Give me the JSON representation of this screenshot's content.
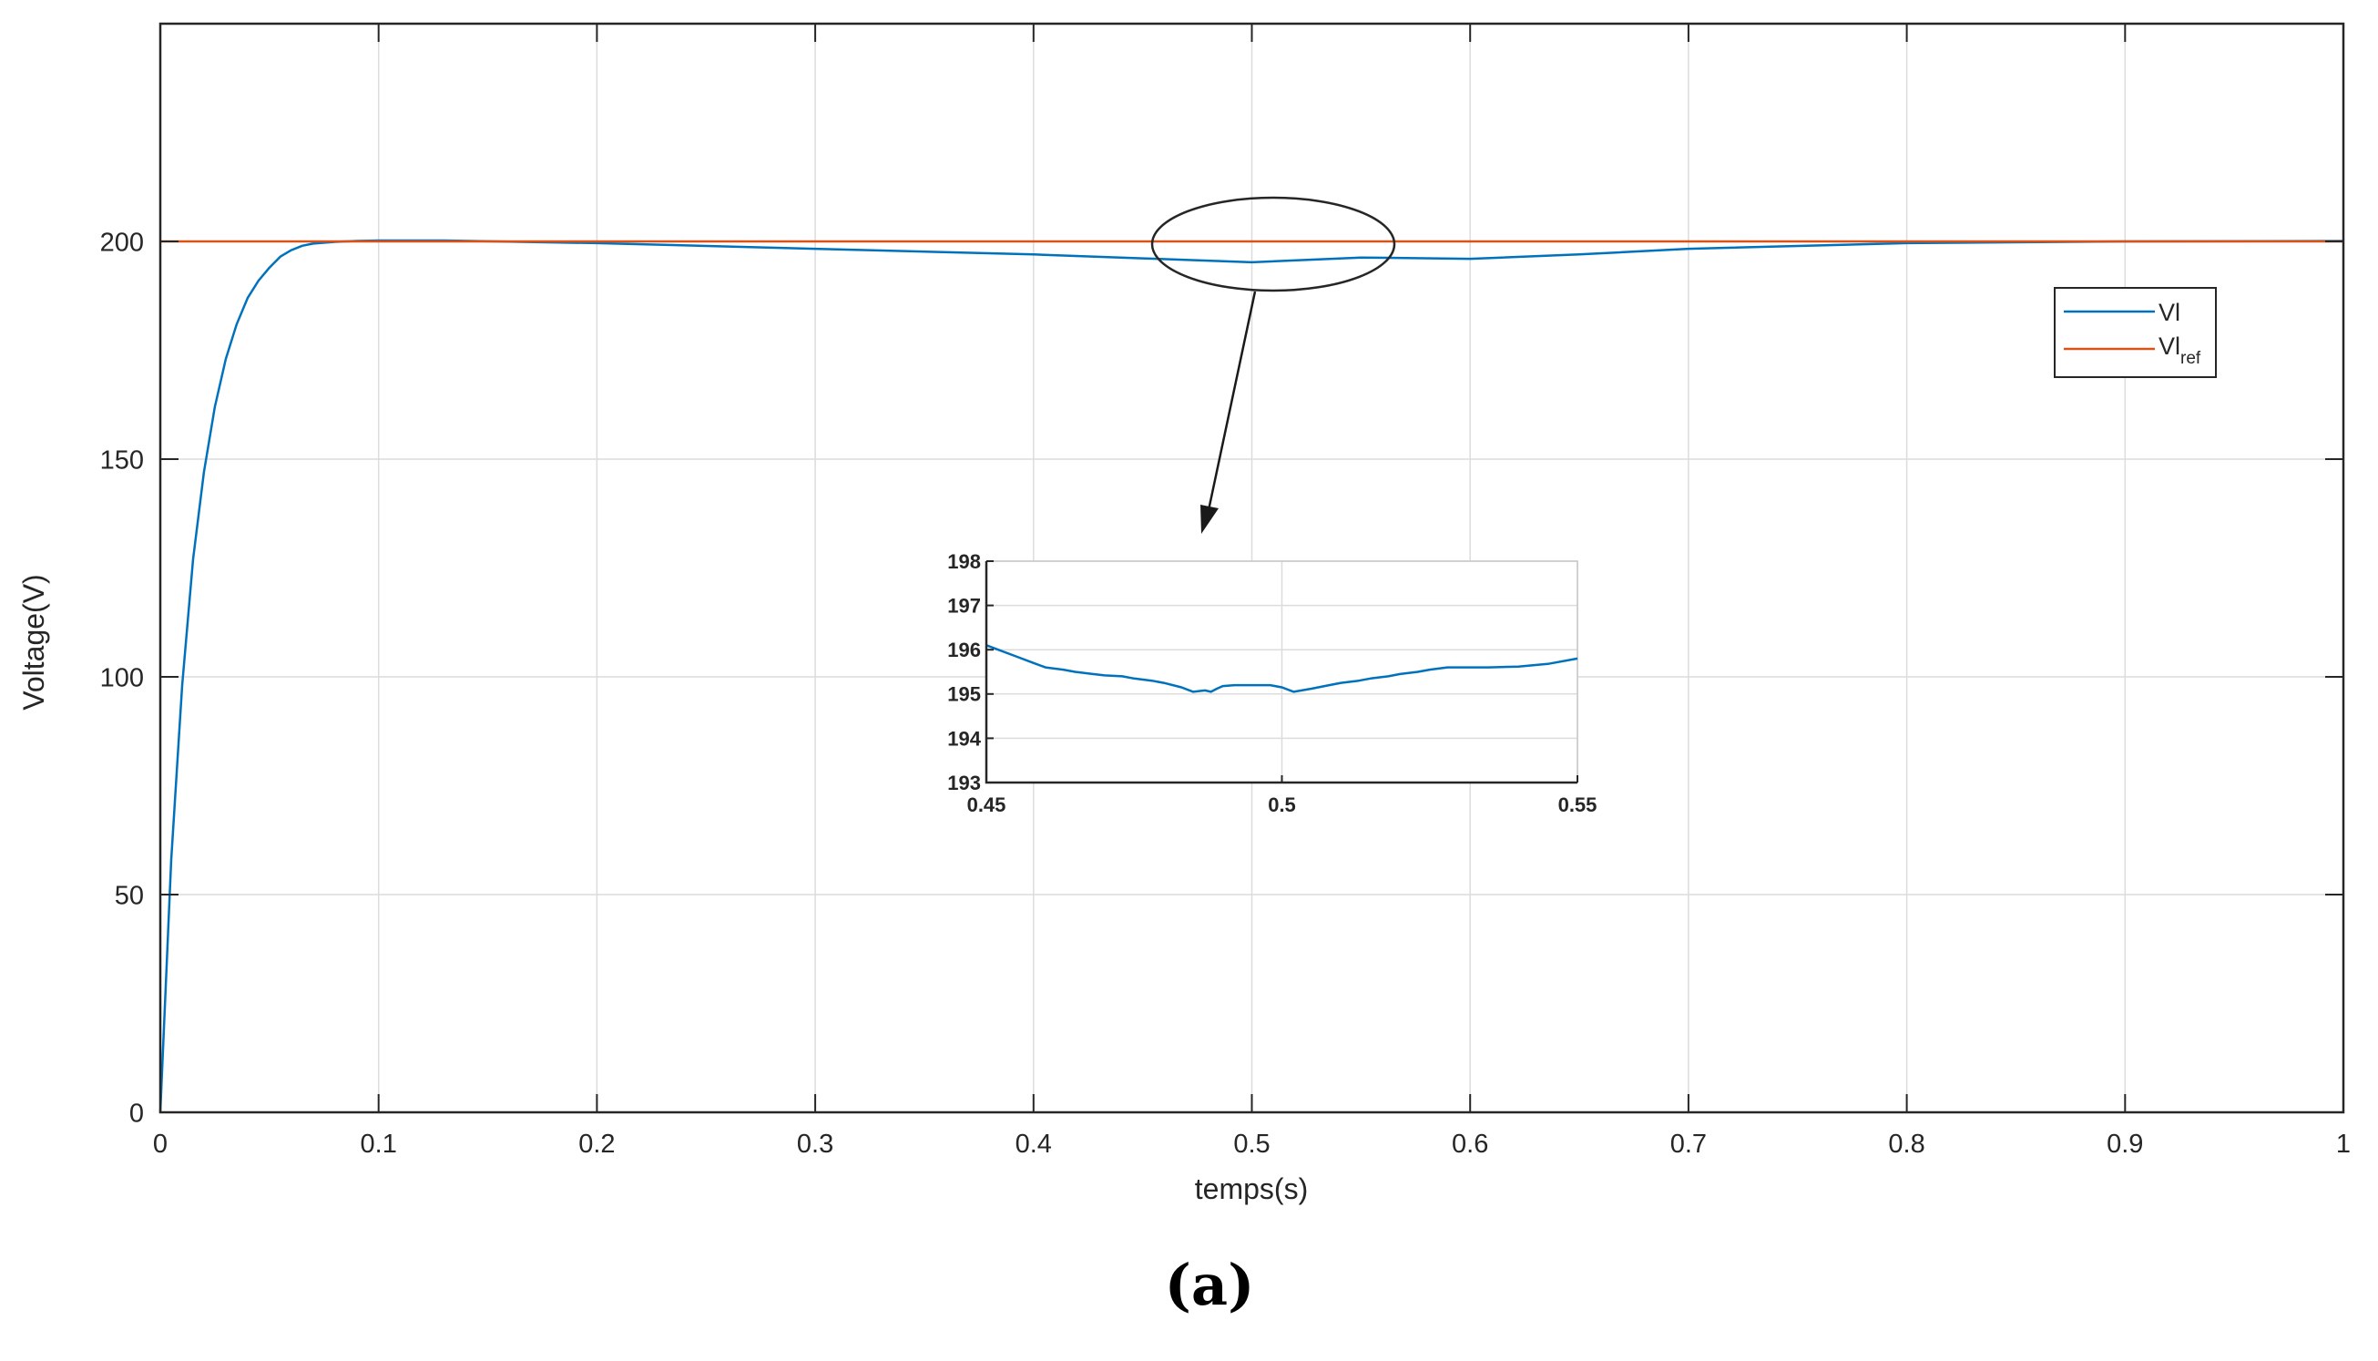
{
  "caption": "(a)",
  "chart_data": [
    {
      "type": "line",
      "xlabel": "temps(s)",
      "ylabel": "Voltage(V)",
      "xlim": [
        0,
        1
      ],
      "ylim": [
        0,
        250
      ],
      "x_ticks": [
        0,
        0.1,
        0.2,
        0.3,
        0.4,
        0.5,
        0.6,
        0.7,
        0.8,
        0.9,
        1
      ],
      "x_tick_labels": [
        "0",
        "0.1",
        "0.2",
        "0.3",
        "0.4",
        "0.5",
        "0.6",
        "0.7",
        "0.8",
        "0.9",
        "1"
      ],
      "y_ticks": [
        0,
        50,
        100,
        150,
        200
      ],
      "y_tick_labels": [
        "0",
        "50",
        "100",
        "150",
        "200"
      ],
      "grid": true,
      "legend_position": "right",
      "series": [
        {
          "name": "Vl",
          "color": "#0072bd",
          "x": [
            0,
            0.005,
            0.01,
            0.015,
            0.02,
            0.025,
            0.03,
            0.035,
            0.04,
            0.045,
            0.05,
            0.055,
            0.06,
            0.065,
            0.07,
            0.08,
            0.09,
            0.1,
            0.13,
            0.2,
            0.3,
            0.4,
            0.45,
            0.5,
            0.55,
            0.6,
            0.65,
            0.7,
            0.8,
            0.9,
            1.0
          ],
          "y": [
            0,
            58,
            98,
            127,
            147,
            162,
            173,
            181,
            187,
            191,
            194,
            196.5,
            198,
            199,
            199.5,
            199.9,
            200.1,
            200.2,
            200.2,
            199.6,
            198.3,
            197,
            196.1,
            195.2,
            196.3,
            196,
            197,
            198.3,
            199.6,
            200,
            200.1
          ]
        },
        {
          "name_main": "Vl",
          "name_sub": "ref",
          "color": "#d95319",
          "x": [
            0,
            1
          ],
          "y": [
            200,
            200
          ]
        }
      ],
      "annotation": {
        "type": "ellipse-callout",
        "center_x": 0.5,
        "center_y": 198,
        "target": "inset"
      }
    },
    {
      "type": "line",
      "role": "inset",
      "xlim": [
        0.45,
        0.55
      ],
      "ylim": [
        193,
        198
      ],
      "x_ticks": [
        0.45,
        0.5,
        0.55
      ],
      "x_tick_labels": [
        "0.45",
        "0.5",
        "0.55"
      ],
      "y_ticks": [
        193,
        194,
        195,
        196,
        197,
        198
      ],
      "y_tick_labels": [
        "193",
        "194",
        "195",
        "196",
        "197",
        "198"
      ],
      "grid": true,
      "series": [
        {
          "name": "",
          "color": "#0072bd",
          "x": [
            0.45,
            0.452,
            0.455,
            0.458,
            0.46,
            0.463,
            0.465,
            0.468,
            0.47,
            0.473,
            0.475,
            0.478,
            0.48,
            0.483,
            0.485,
            0.487,
            0.488,
            0.489,
            0.49,
            0.492,
            0.495,
            0.498,
            0.5,
            0.502,
            0.505,
            0.508,
            0.51,
            0.513,
            0.515,
            0.518,
            0.52,
            0.523,
            0.525,
            0.528,
            0.53,
            0.535,
            0.54,
            0.545,
            0.55
          ],
          "y": [
            196.1,
            196.0,
            195.85,
            195.7,
            195.6,
            195.55,
            195.5,
            195.45,
            195.42,
            195.4,
            195.35,
            195.3,
            195.25,
            195.15,
            195.05,
            195.08,
            195.05,
            195.12,
            195.18,
            195.2,
            195.2,
            195.2,
            195.15,
            195.05,
            195.12,
            195.2,
            195.25,
            195.3,
            195.35,
            195.4,
            195.45,
            195.5,
            195.55,
            195.6,
            195.6,
            195.6,
            195.62,
            195.68,
            195.8
          ]
        }
      ]
    }
  ]
}
